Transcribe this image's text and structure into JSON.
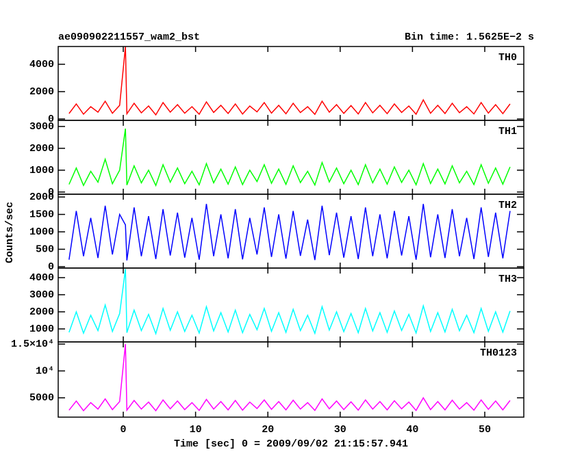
{
  "chart_data": [
    {
      "type": "line",
      "title": "ae090902211557_wam2_bst",
      "subtitle": "Bin time: 1.5625E−2 s",
      "x": [
        -7.5,
        -6.5,
        -5.5,
        -4.5,
        -3.5,
        -2.5,
        -1.5,
        -0.5,
        0.3,
        0.5,
        1.5,
        2.5,
        3.5,
        4.5,
        5.5,
        6.5,
        7.5,
        8.5,
        9.5,
        10.5,
        11.5,
        12.5,
        13.5,
        14.5,
        15.5,
        16.5,
        17.5,
        18.5,
        19.5,
        20.5,
        21.5,
        22.5,
        23.5,
        24.5,
        25.5,
        26.5,
        27.5,
        28.5,
        29.5,
        30.5,
        31.5,
        32.5,
        33.5,
        34.5,
        35.5,
        36.5,
        37.5,
        38.5,
        39.5,
        40.5,
        41.5,
        42.5,
        43.5,
        44.5,
        45.5,
        46.5,
        47.5,
        48.5,
        49.5,
        50.5,
        51.5,
        52.5,
        53.5
      ],
      "series": [
        {
          "name": "TH0",
          "color": "#ff0000",
          "values": [
            400,
            1100,
            350,
            900,
            500,
            1300,
            420,
            1000,
            5300,
            380,
            1150,
            450,
            950,
            300,
            1200,
            500,
            1050,
            420,
            900,
            350,
            1250,
            480,
            1000,
            400,
            1100,
            360,
            950,
            520,
            1200,
            430,
            1000,
            380,
            1150,
            470,
            900,
            340,
            1300,
            500,
            1050,
            410,
            980,
            370,
            1200,
            450,
            1000,
            390,
            1100,
            480,
            950,
            350,
            1400,
            420,
            1000,
            400,
            1150,
            460,
            900,
            370,
            1200,
            430,
            1050,
            390,
            1100
          ]
        }
      ],
      "xlim": [
        -9,
        55.4
      ],
      "xticks": [
        0,
        10,
        20,
        30,
        40,
        50
      ],
      "ylim": [
        -100,
        5300
      ],
      "yticks": [
        0,
        2000,
        4000
      ]
    },
    {
      "type": "line",
      "x": [
        -7.5,
        -6.5,
        -5.5,
        -4.5,
        -3.5,
        -2.5,
        -1.5,
        -0.5,
        0.3,
        0.5,
        1.5,
        2.5,
        3.5,
        4.5,
        5.5,
        6.5,
        7.5,
        8.5,
        9.5,
        10.5,
        11.5,
        12.5,
        13.5,
        14.5,
        15.5,
        16.5,
        17.5,
        18.5,
        19.5,
        20.5,
        21.5,
        22.5,
        23.5,
        24.5,
        25.5,
        26.5,
        27.5,
        28.5,
        29.5,
        30.5,
        31.5,
        32.5,
        33.5,
        34.5,
        35.5,
        36.5,
        37.5,
        38.5,
        39.5,
        40.5,
        41.5,
        42.5,
        43.5,
        44.5,
        45.5,
        46.5,
        47.5,
        48.5,
        49.5,
        50.5,
        51.5,
        52.5,
        53.5
      ],
      "series": [
        {
          "name": "TH1",
          "color": "#00ff00",
          "values": [
            350,
            1100,
            300,
            950,
            450,
            1500,
            380,
            1000,
            2900,
            320,
            1200,
            420,
            1000,
            300,
            1250,
            450,
            1100,
            380,
            950,
            330,
            1300,
            420,
            1050,
            360,
            1150,
            340,
            1000,
            480,
            1250,
            400,
            1050,
            350,
            1200,
            430,
            950,
            320,
            1350,
            460,
            1100,
            380,
            1000,
            340,
            1250,
            420,
            1050,
            360,
            1150,
            440,
            1000,
            330,
            1300,
            390,
            1050,
            370,
            1200,
            420,
            950,
            340,
            1250,
            400,
            1100,
            360,
            1150
          ]
        }
      ],
      "xlim": [
        -9,
        55.4
      ],
      "xticks": [
        0,
        10,
        20,
        30,
        40,
        50
      ],
      "ylim": [
        -100,
        3280
      ],
      "yticks": [
        0,
        1000,
        2000,
        3000
      ]
    },
    {
      "type": "line",
      "ylabel": "Counts/sec",
      "x": [
        -7.5,
        -6.5,
        -5.5,
        -4.5,
        -3.5,
        -2.5,
        -1.5,
        -0.5,
        0.3,
        0.5,
        1.5,
        2.5,
        3.5,
        4.5,
        5.5,
        6.5,
        7.5,
        8.5,
        9.5,
        10.5,
        11.5,
        12.5,
        13.5,
        14.5,
        15.5,
        16.5,
        17.5,
        18.5,
        19.5,
        20.5,
        21.5,
        22.5,
        23.5,
        24.5,
        25.5,
        26.5,
        27.5,
        28.5,
        29.5,
        30.5,
        31.5,
        32.5,
        33.5,
        34.5,
        35.5,
        36.5,
        37.5,
        38.5,
        39.5,
        40.5,
        41.5,
        42.5,
        43.5,
        44.5,
        45.5,
        46.5,
        47.5,
        48.5,
        49.5,
        50.5,
        51.5,
        52.5,
        53.5
      ],
      "series": [
        {
          "name": "TH2",
          "color": "#0000ff",
          "values": [
            200,
            1600,
            300,
            1400,
            250,
            1750,
            350,
            1500,
            1200,
            180,
            1700,
            300,
            1450,
            220,
            1650,
            320,
            1550,
            260,
            1400,
            200,
            1800,
            300,
            1500,
            240,
            1650,
            210,
            1400,
            350,
            1700,
            280,
            1500,
            230,
            1600,
            310,
            1350,
            190,
            1750,
            330,
            1550,
            260,
            1450,
            220,
            1700,
            300,
            1500,
            240,
            1600,
            320,
            1450,
            200,
            1800,
            270,
            1500,
            250,
            1650,
            300,
            1400,
            220,
            1700,
            280,
            1550,
            240,
            1600
          ]
        }
      ],
      "xlim": [
        -9,
        55.4
      ],
      "xticks": [
        0,
        10,
        20,
        30,
        40,
        50
      ],
      "ylim": [
        -40,
        2080
      ],
      "yticks": [
        0,
        500,
        1000,
        1500,
        2000
      ]
    },
    {
      "type": "line",
      "x": [
        -7.5,
        -6.5,
        -5.5,
        -4.5,
        -3.5,
        -2.5,
        -1.5,
        -0.5,
        0.3,
        0.5,
        1.5,
        2.5,
        3.5,
        4.5,
        5.5,
        6.5,
        7.5,
        8.5,
        9.5,
        10.5,
        11.5,
        12.5,
        13.5,
        14.5,
        15.5,
        16.5,
        17.5,
        18.5,
        19.5,
        20.5,
        21.5,
        22.5,
        23.5,
        24.5,
        25.5,
        26.5,
        27.5,
        28.5,
        29.5,
        30.5,
        31.5,
        32.5,
        33.5,
        34.5,
        35.5,
        36.5,
        37.5,
        38.5,
        39.5,
        40.5,
        41.5,
        42.5,
        43.5,
        44.5,
        45.5,
        46.5,
        47.5,
        48.5,
        49.5,
        50.5,
        51.5,
        52.5,
        53.5
      ],
      "series": [
        {
          "name": "TH3",
          "color": "#00ffff",
          "values": [
            800,
            2000,
            750,
            1800,
            900,
            2400,
            850,
            1900,
            4500,
            780,
            2100,
            900,
            1850,
            720,
            2200,
            920,
            2000,
            850,
            1800,
            760,
            2300,
            880,
            1950,
            820,
            2100,
            780,
            1850,
            950,
            2200,
            860,
            1950,
            800,
            2150,
            900,
            1800,
            740,
            2300,
            930,
            2000,
            840,
            1900,
            780,
            2200,
            880,
            1950,
            800,
            2050,
            910,
            1850,
            760,
            2350,
            850,
            1950,
            820,
            2150,
            890,
            1800,
            780,
            2200,
            860,
            2000,
            810,
            2050
          ]
        }
      ],
      "xlim": [
        -9,
        55.4
      ],
      "xticks": [
        0,
        10,
        20,
        30,
        40,
        50
      ],
      "ylim": [
        240,
        4560
      ],
      "yticks": [
        1000,
        2000,
        3000,
        4000
      ]
    },
    {
      "type": "line",
      "xlabel": "Time [sec] 0 = 2009/09/02 21:15:57.941",
      "x": [
        -7.5,
        -6.5,
        -5.5,
        -4.5,
        -3.5,
        -2.5,
        -1.5,
        -0.5,
        0.3,
        0.5,
        1.5,
        2.5,
        3.5,
        4.5,
        5.5,
        6.5,
        7.5,
        8.5,
        9.5,
        10.5,
        11.5,
        12.5,
        13.5,
        14.5,
        15.5,
        16.5,
        17.5,
        18.5,
        19.5,
        20.5,
        21.5,
        22.5,
        23.5,
        24.5,
        25.5,
        26.5,
        27.5,
        28.5,
        29.5,
        30.5,
        31.5,
        32.5,
        33.5,
        34.5,
        35.5,
        36.5,
        37.5,
        38.5,
        39.5,
        40.5,
        41.5,
        42.5,
        43.5,
        44.5,
        45.5,
        46.5,
        47.5,
        48.5,
        49.5,
        50.5,
        51.5,
        52.5,
        53.5
      ],
      "series": [
        {
          "name": "TH0123",
          "color": "#ff00ff",
          "values": [
            2700,
            4400,
            2600,
            4100,
            2900,
            4800,
            2800,
            4300,
            15000,
            2700,
            4500,
            2900,
            4200,
            2600,
            4600,
            2950,
            4400,
            2800,
            4100,
            2650,
            4700,
            2900,
            4300,
            2750,
            4500,
            2700,
            4200,
            3000,
            4600,
            2850,
            4300,
            2750,
            4550,
            2900,
            4100,
            2650,
            4800,
            2950,
            4400,
            2800,
            4250,
            2700,
            4600,
            2900,
            4300,
            2750,
            4450,
            2950,
            4200,
            2650,
            5000,
            2800,
            4300,
            2750,
            4550,
            2900,
            4100,
            2700,
            4600,
            2850,
            4400,
            2750,
            4500
          ]
        }
      ],
      "xlim": [
        -9,
        55.4
      ],
      "xticks": [
        0,
        10,
        20,
        30,
        40,
        50
      ],
      "ylim": [
        1400,
        15400
      ],
      "yticks": [
        5000,
        {
          "value": 10000,
          "label": "10⁴"
        },
        {
          "value": 15000,
          "label": "1.5×10⁴"
        }
      ]
    }
  ]
}
